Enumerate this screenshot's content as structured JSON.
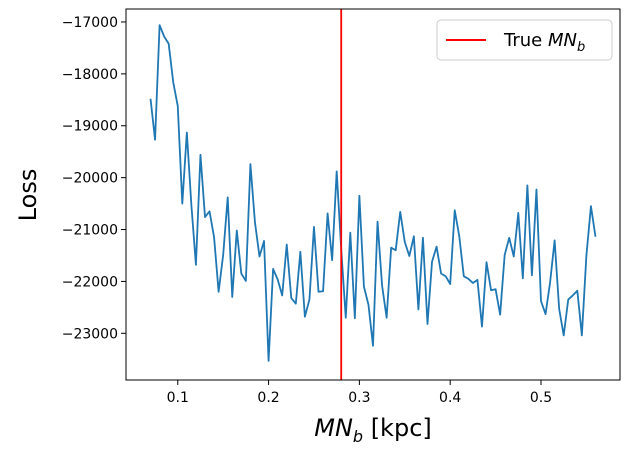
{
  "chart_data": {
    "type": "line",
    "xlabel_main": "MN",
    "xlabel_sub": "b",
    "xlabel_unit": " [kpc]",
    "ylabel": "Loss",
    "xlim": [
      0.043,
      0.587
    ],
    "ylim": [
      -23900,
      -16750
    ],
    "xticks": [
      0.1,
      0.2,
      0.3,
      0.4,
      0.5
    ],
    "xtick_labels": [
      "0.1",
      "0.2",
      "0.3",
      "0.4",
      "0.5"
    ],
    "yticks": [
      -17000,
      -18000,
      -19000,
      -20000,
      -21000,
      -22000,
      -23000
    ],
    "ytick_labels": [
      "−17000",
      "−18000",
      "−19000",
      "−20000",
      "−21000",
      "−22000",
      "−23000"
    ],
    "true_value": 0.28,
    "legend": {
      "prefix": "True ",
      "main": "MN",
      "sub": "b",
      "location": "upper right"
    },
    "colors": {
      "series": "#1f77b4",
      "true_line": "#ff0000",
      "axes": "#000000",
      "legend_border": "#cccccc"
    },
    "series": [
      {
        "x": [
          0.07,
          0.075,
          0.08,
          0.085,
          0.09,
          0.095,
          0.1,
          0.105,
          0.11,
          0.115,
          0.12,
          0.125,
          0.13,
          0.135,
          0.14,
          0.145,
          0.15,
          0.155,
          0.16,
          0.165,
          0.17,
          0.175,
          0.18,
          0.185,
          0.19,
          0.195,
          0.2,
          0.205,
          0.21,
          0.215,
          0.22,
          0.225,
          0.23,
          0.235,
          0.24,
          0.245,
          0.25,
          0.255,
          0.26,
          0.265,
          0.27,
          0.275,
          0.28,
          0.285,
          0.29,
          0.295,
          0.3,
          0.305,
          0.31,
          0.315,
          0.32,
          0.325,
          0.33,
          0.335,
          0.34,
          0.345,
          0.35,
          0.355,
          0.36,
          0.365,
          0.37,
          0.375,
          0.38,
          0.385,
          0.39,
          0.395,
          0.4,
          0.405,
          0.41,
          0.415,
          0.42,
          0.425,
          0.43,
          0.435,
          0.44,
          0.445,
          0.45,
          0.455,
          0.46,
          0.465,
          0.47,
          0.475,
          0.48,
          0.485,
          0.49,
          0.495,
          0.5,
          0.505,
          0.51,
          0.515,
          0.52,
          0.525,
          0.53,
          0.535,
          0.54,
          0.545,
          0.55,
          0.555,
          0.56
        ],
        "y": [
          -18480,
          -19270,
          -17060,
          -17280,
          -17420,
          -18160,
          -18620,
          -20500,
          -19130,
          -20530,
          -21680,
          -19560,
          -20760,
          -20650,
          -21150,
          -22200,
          -21490,
          -20380,
          -22300,
          -21020,
          -21850,
          -21990,
          -19740,
          -20860,
          -21520,
          -21220,
          -23530,
          -21760,
          -21960,
          -22270,
          -21290,
          -22320,
          -22430,
          -21430,
          -22680,
          -22350,
          -20950,
          -22200,
          -22190,
          -20690,
          -21590,
          -19880,
          -21380,
          -22700,
          -21060,
          -22710,
          -20350,
          -22100,
          -22450,
          -23240,
          -20850,
          -22080,
          -22700,
          -21350,
          -21400,
          -20660,
          -21240,
          -21510,
          -21130,
          -22540,
          -21160,
          -22820,
          -21620,
          -21330,
          -21850,
          -21900,
          -22050,
          -20630,
          -21130,
          -21900,
          -21950,
          -22030,
          -21970,
          -22870,
          -21630,
          -22170,
          -22150,
          -22640,
          -21490,
          -21160,
          -21520,
          -20680,
          -21940,
          -20150,
          -21880,
          -20230,
          -22380,
          -22630,
          -22020,
          -21210,
          -22530,
          -23040,
          -22350,
          -22270,
          -22180,
          -23040,
          -21500,
          -20550,
          -21140
        ]
      }
    ]
  }
}
